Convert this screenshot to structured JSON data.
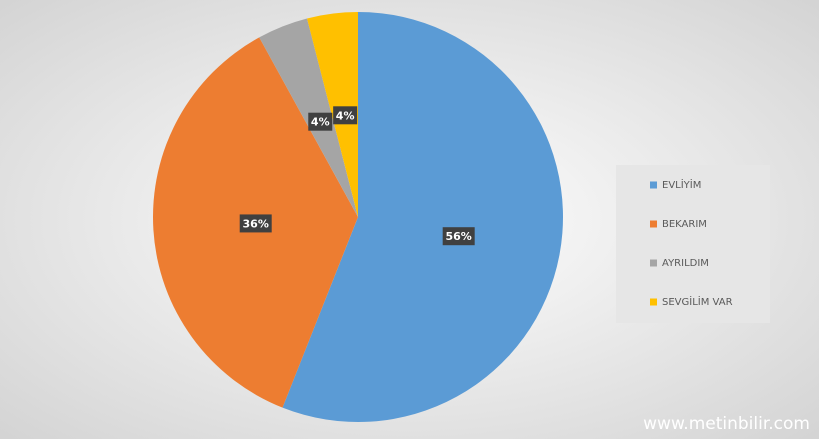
{
  "chart_data": {
    "type": "pie",
    "categories": [
      "EVLİYİM",
      "BEKARIM",
      "AYRILDIM",
      "SEVGİLİM VAR"
    ],
    "values": [
      56,
      36,
      4,
      4
    ],
    "value_labels": [
      "56%",
      "36%",
      "4%",
      "4%"
    ],
    "colors": [
      "#5b9bd5",
      "#ed7d31",
      "#a5a5a5",
      "#ffc000"
    ],
    "legend": "right"
  },
  "watermark": "www.metinbilir.com"
}
